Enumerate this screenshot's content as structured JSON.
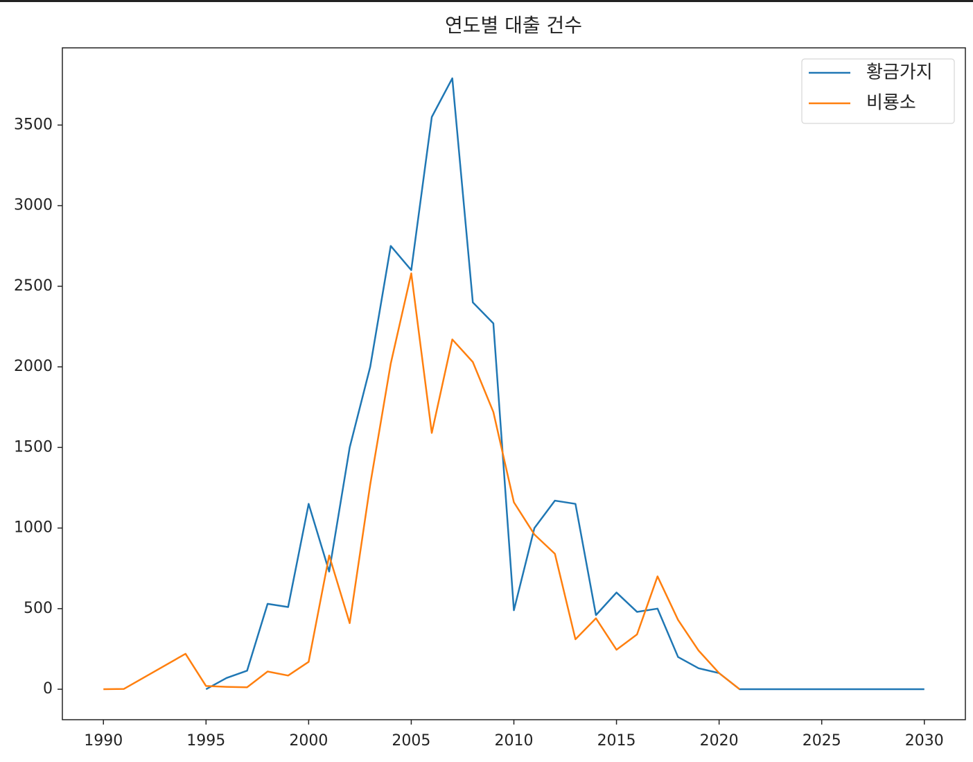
{
  "chart_data": {
    "type": "line",
    "title": "연도별 대출 건수",
    "series": [
      {
        "name": "황금가지",
        "color": "#1f77b4",
        "x": [
          1995,
          1996,
          1997,
          1998,
          1999,
          2000,
          2001,
          2002,
          2003,
          2004,
          2005,
          2006,
          2007,
          2008,
          2009,
          2010,
          2011,
          2012,
          2013,
          2014,
          2015,
          2016,
          2017,
          2018,
          2019,
          2020,
          2021,
          2022,
          2023,
          2024,
          2025,
          2026,
          2027,
          2028,
          2029,
          2030
        ],
        "values": [
          0,
          70,
          115,
          530,
          510,
          1150,
          730,
          1500,
          2000,
          2750,
          2600,
          3550,
          3790,
          2400,
          2270,
          490,
          1000,
          1170,
          1150,
          460,
          600,
          480,
          500,
          200,
          130,
          100,
          0,
          0,
          0,
          0,
          0,
          0,
          0,
          0,
          0,
          0
        ]
      },
      {
        "name": "비룡소",
        "color": "#ff7f0e",
        "x": [
          1990,
          1991,
          1994,
          1995,
          1996,
          1997,
          1998,
          1999,
          2000,
          2001,
          2002,
          2003,
          2004,
          2005,
          2006,
          2007,
          2008,
          2009,
          2010,
          2011,
          2012,
          2013,
          2014,
          2015,
          2016,
          2017,
          2018,
          2019,
          2020,
          2021
        ],
        "values": [
          0,
          2,
          220,
          20,
          15,
          12,
          110,
          85,
          170,
          830,
          410,
          1270,
          2020,
          2580,
          1590,
          2170,
          2030,
          1720,
          1160,
          960,
          840,
          310,
          440,
          245,
          340,
          700,
          430,
          240,
          100,
          0
        ]
      }
    ],
    "xlim": [
      1988,
      2032
    ],
    "xticks": [
      1990,
      1995,
      2000,
      2005,
      2010,
      2015,
      2020,
      2025,
      2030
    ],
    "ylim": [
      -189,
      3979
    ],
    "yticks": [
      0,
      500,
      1000,
      1500,
      2000,
      2500,
      3000,
      3500
    ],
    "legend": "upper right"
  }
}
